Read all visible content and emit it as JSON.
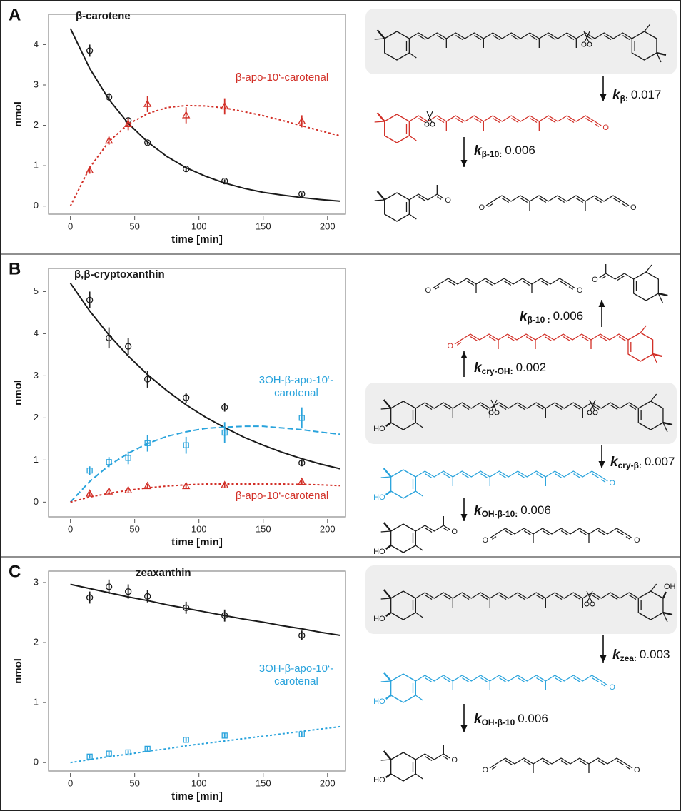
{
  "panel_labels": [
    "A",
    "B",
    "C"
  ],
  "chart_data": [
    {
      "type": "scatter",
      "xlabel": "time [min]",
      "ylabel": "nmol",
      "xlim": [
        -17,
        214
      ],
      "xticks": [
        0,
        50,
        100,
        150,
        200
      ],
      "ylim": [
        -0.2,
        4.75
      ],
      "yticks": [
        0,
        1,
        2,
        3,
        4
      ],
      "series": [
        {
          "name": "β-carotene",
          "color": "#1a1a1a",
          "marker": "circle",
          "x": [
            15,
            30,
            45,
            60,
            90,
            120,
            180
          ],
          "values": [
            3.85,
            2.7,
            2.12,
            1.57,
            0.92,
            0.62,
            0.3
          ],
          "errors": [
            0.15,
            0.1,
            0.08,
            0.05,
            0.05,
            0.04,
            0.04
          ],
          "fit": {
            "style": "solid",
            "x": [
              0,
              15,
              30,
              45,
              60,
              75,
              90,
              105,
              120,
              135,
              150,
              165,
              180,
              195,
              210
            ],
            "values": [
              4.4,
              3.41,
              2.64,
              2.05,
              1.59,
              1.23,
              0.95,
              0.74,
              0.57,
              0.44,
              0.34,
              0.27,
              0.21,
              0.16,
              0.12
            ]
          }
        },
        {
          "name": "β-apo-10‘-carotenal",
          "color": "#d22f27",
          "marker": "triangle",
          "x": [
            15,
            30,
            45,
            60,
            90,
            120,
            180
          ],
          "values": [
            0.88,
            1.62,
            2.03,
            2.53,
            2.25,
            2.47,
            2.1
          ],
          "errors": [
            0.08,
            0.1,
            0.15,
            0.2,
            0.2,
            0.2,
            0.15
          ],
          "fit": {
            "style": "dotted",
            "x": [
              0,
              15,
              30,
              45,
              60,
              75,
              90,
              105,
              120,
              135,
              150,
              165,
              180,
              195,
              210
            ],
            "values": [
              0,
              0.95,
              1.6,
              2.03,
              2.29,
              2.44,
              2.49,
              2.48,
              2.43,
              2.34,
              2.24,
              2.12,
              1.99,
              1.86,
              1.74
            ]
          }
        }
      ]
    },
    {
      "type": "scatter",
      "xlabel": "time [min]",
      "ylabel": "nmol",
      "xlim": [
        -17,
        214
      ],
      "xticks": [
        0,
        50,
        100,
        150,
        200
      ],
      "ylim": [
        -0.35,
        5.55
      ],
      "yticks": [
        0,
        1,
        2,
        3,
        4,
        5
      ],
      "series": [
        {
          "name": "β,β-cryptoxanthin",
          "color": "#1a1a1a",
          "marker": "circle",
          "x": [
            15,
            30,
            45,
            60,
            90,
            120,
            180
          ],
          "values": [
            4.8,
            3.9,
            3.7,
            2.92,
            2.48,
            2.25,
            0.93
          ],
          "errors": [
            0.2,
            0.25,
            0.2,
            0.2,
            0.12,
            0.1,
            0.08
          ],
          "fit": {
            "style": "solid",
            "x": [
              0,
              15,
              30,
              45,
              60,
              75,
              90,
              105,
              120,
              135,
              150,
              165,
              180,
              195,
              210
            ],
            "values": [
              5.2,
              4.54,
              3.97,
              3.47,
              3.03,
              2.65,
              2.31,
              2.02,
              1.77,
              1.54,
              1.35,
              1.18,
              1.03,
              0.9,
              0.79
            ]
          }
        },
        {
          "name": "3OH-β-apo-10‘-carotenal",
          "color": "#29a3dc",
          "marker": "square",
          "x": [
            15,
            30,
            45,
            60,
            90,
            120,
            180
          ],
          "values": [
            0.75,
            0.95,
            1.05,
            1.4,
            1.35,
            1.65,
            2.0
          ],
          "errors": [
            0.1,
            0.12,
            0.15,
            0.2,
            0.2,
            0.25,
            0.25
          ],
          "fit": {
            "style": "dashed",
            "x": [
              0,
              15,
              30,
              45,
              60,
              75,
              90,
              105,
              120,
              135,
              150,
              165,
              180,
              195,
              210
            ],
            "values": [
              0,
              0.49,
              0.87,
              1.16,
              1.39,
              1.56,
              1.67,
              1.75,
              1.78,
              1.8,
              1.8,
              1.76,
              1.72,
              1.66,
              1.61
            ]
          }
        },
        {
          "name": "β-apo-10‘-carotenal",
          "color": "#d22f27",
          "marker": "triangle",
          "x": [
            15,
            30,
            45,
            60,
            90,
            120,
            180
          ],
          "values": [
            0.2,
            0.25,
            0.28,
            0.38,
            0.38,
            0.4,
            0.48
          ],
          "errors": [
            0.05,
            0.05,
            0.05,
            0.05,
            0.05,
            0.05,
            0.05
          ],
          "fit": {
            "style": "dotted",
            "x": [
              0,
              15,
              30,
              45,
              60,
              75,
              90,
              105,
              120,
              135,
              150,
              165,
              180,
              195,
              210
            ],
            "values": [
              0,
              0.12,
              0.21,
              0.28,
              0.34,
              0.38,
              0.41,
              0.43,
              0.43,
              0.43,
              0.43,
              0.43,
              0.42,
              0.41,
              0.39
            ]
          }
        }
      ]
    },
    {
      "type": "scatter",
      "xlabel": "time [min]",
      "ylabel": "nmol",
      "xlim": [
        -17,
        214
      ],
      "xticks": [
        0,
        50,
        100,
        150,
        200
      ],
      "ylim": [
        -0.14,
        3.19
      ],
      "yticks": [
        0,
        1,
        2,
        3
      ],
      "series": [
        {
          "name": "zeaxanthin",
          "color": "#1a1a1a",
          "marker": "circle",
          "x": [
            15,
            30,
            45,
            60,
            90,
            120,
            180
          ],
          "values": [
            2.75,
            2.93,
            2.85,
            2.77,
            2.58,
            2.45,
            2.12
          ],
          "errors": [
            0.1,
            0.12,
            0.12,
            0.1,
            0.1,
            0.1,
            0.08
          ],
          "fit": {
            "style": "solid",
            "x": [
              0,
              15,
              30,
              45,
              60,
              75,
              90,
              105,
              120,
              135,
              150,
              165,
              180,
              195,
              210
            ],
            "values": [
              2.97,
              2.9,
              2.83,
              2.76,
              2.7,
              2.63,
              2.57,
              2.51,
              2.45,
              2.39,
              2.34,
              2.28,
              2.23,
              2.17,
              2.12
            ]
          }
        },
        {
          "name": "3OH-β-apo-10‘-carotenal",
          "color": "#29a3dc",
          "marker": "square",
          "x": [
            15,
            30,
            45,
            60,
            90,
            120,
            180
          ],
          "values": [
            0.1,
            0.15,
            0.17,
            0.23,
            0.38,
            0.45,
            0.47
          ],
          "errors": [
            0.03,
            0.03,
            0.03,
            0.03,
            0.03,
            0.04,
            0.05
          ],
          "fit": {
            "style": "dotted",
            "x": [
              0,
              15,
              30,
              45,
              60,
              75,
              90,
              105,
              120,
              135,
              150,
              165,
              180,
              195,
              210
            ],
            "values": [
              0,
              0.05,
              0.1,
              0.14,
              0.19,
              0.23,
              0.28,
              0.32,
              0.36,
              0.4,
              0.44,
              0.48,
              0.52,
              0.56,
              0.6
            ]
          }
        }
      ]
    }
  ],
  "diagrams": [
    {
      "rate_constants": [
        {
          "symbol": "k",
          "subscript": "β:",
          "value": 0.017
        },
        {
          "symbol": "k",
          "subscript": "β-10:",
          "value": 0.006
        }
      ],
      "atom_labels": [
        "O",
        "O",
        "O",
        "O"
      ]
    },
    {
      "rate_constants": [
        {
          "symbol": "k",
          "subscript": "β-10 :",
          "value": 0.006
        },
        {
          "symbol": "k",
          "subscript": "cry-OH:",
          "value": 0.002
        },
        {
          "symbol": "k",
          "subscript": "cry-β:",
          "value": 0.007
        },
        {
          "symbol": "k",
          "subscript": "OH-β-10:",
          "value": 0.006
        }
      ],
      "atom_labels": [
        "O",
        "O",
        "O",
        "O",
        "HO",
        "HO",
        "O",
        "HO",
        "O",
        "O",
        "O"
      ]
    },
    {
      "rate_constants": [
        {
          "symbol": "k",
          "subscript": "zea:",
          "value": 0.003
        },
        {
          "symbol": "k",
          "subscript": "OH-β-10",
          "value": 0.006
        }
      ],
      "atom_labels": [
        "HO",
        "OH",
        "HO",
        "O",
        "HO",
        "O",
        "O",
        "O"
      ]
    }
  ]
}
